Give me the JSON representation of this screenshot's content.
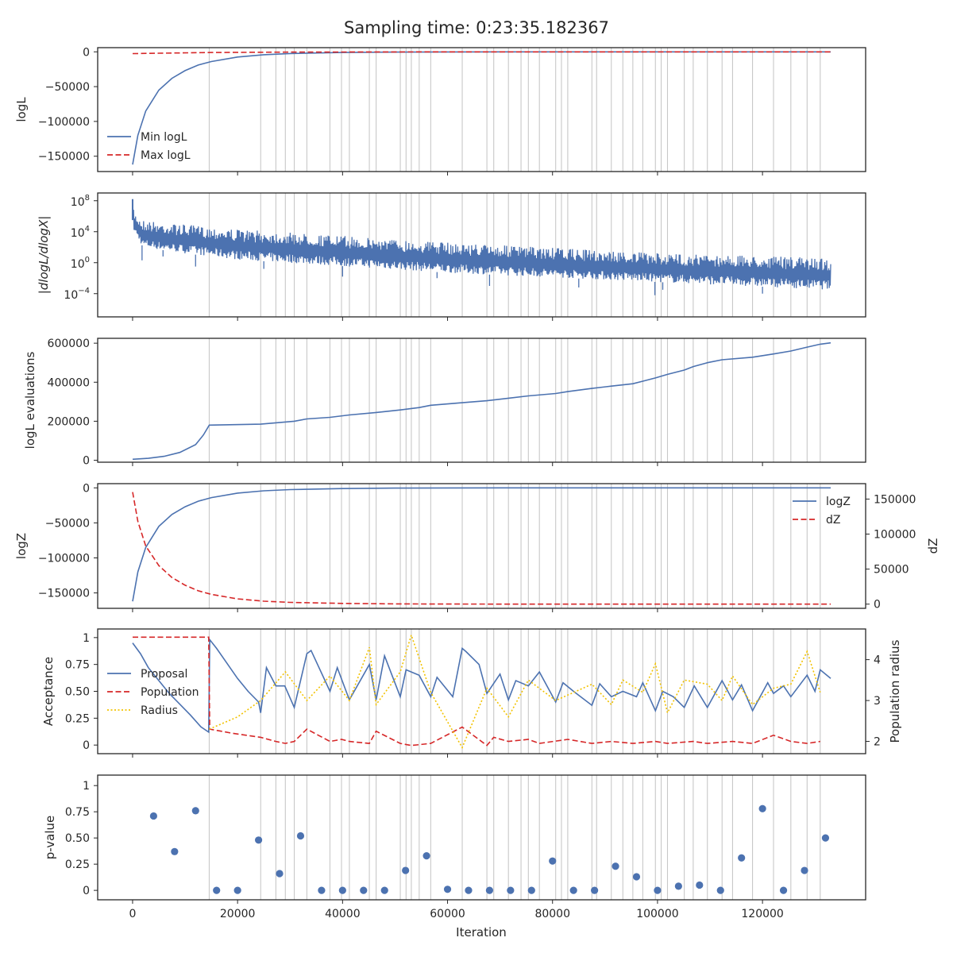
{
  "title": "Sampling time: 0:23:35.182367",
  "colors": {
    "blue": "#4c72b0",
    "red": "#d62728",
    "gold": "#f2c200",
    "vline": "#c8c8c8",
    "axis": "#262626"
  },
  "x_ticks": [
    0,
    20000,
    40000,
    60000,
    80000,
    100000,
    120000
  ],
  "x_label": "Iteration",
  "vlines": [
    14600,
    24400,
    27300,
    29100,
    30800,
    33200,
    37600,
    39800,
    41300,
    45100,
    46400,
    51000,
    52100,
    53100,
    54600,
    56800,
    62800,
    67500,
    68800,
    71600,
    74000,
    75400,
    77500,
    80600,
    81700,
    82900,
    87500,
    88400,
    91200,
    93400,
    95300,
    97200,
    99600,
    100700,
    101900,
    105100,
    106800,
    109500,
    112300,
    114300,
    118100,
    122100,
    125400,
    128500,
    131000
  ],
  "chart_data": [
    {
      "id": "loglike",
      "type": "line",
      "ylabel": "logL",
      "ylim": [
        -172000,
        6000
      ],
      "yticks": [
        0,
        -50000,
        -100000,
        -150000
      ],
      "legend": {
        "location": "lower-left",
        "entries": [
          "Min logL",
          "Max logL"
        ]
      },
      "series": [
        {
          "name": "Min logL",
          "style": "solid",
          "color": "blue",
          "x": [
            0,
            1000,
            2500,
            5000,
            7500,
            10000,
            12500,
            15000,
            20000,
            25000,
            30000,
            40000,
            50000,
            60000,
            80000,
            100000,
            133000
          ],
          "y": [
            -162000,
            -120000,
            -85000,
            -55000,
            -38000,
            -27000,
            -19000,
            -14000,
            -7500,
            -4200,
            -2500,
            -1000,
            -400,
            -150,
            -30,
            -5,
            0
          ]
        },
        {
          "name": "Max logL",
          "style": "dashed",
          "color": "red",
          "x": [
            0,
            5000,
            15000,
            30000,
            60000,
            133000
          ],
          "y": [
            -2600,
            -2000,
            -1000,
            -400,
            -100,
            0
          ]
        }
      ]
    },
    {
      "id": "dlogl",
      "type": "line",
      "ylabel": "|dlogL/dlogX|",
      "yscale": "log",
      "ylim_log10": [
        -7.0,
        9.0
      ],
      "yticks": [
        "10^8",
        "10^4",
        "10^0",
        "10^-4"
      ],
      "yticks_log10": [
        8,
        4,
        0,
        -4
      ],
      "upper_envelope_log10": {
        "x": [
          0,
          300,
          1500,
          5000,
          20000,
          60000,
          100000,
          133000
        ],
        "y": [
          8.2,
          6.5,
          5.6,
          5.2,
          4.3,
          2.6,
          1.2,
          0.6
        ]
      },
      "lower_envelope_log10": {
        "x": [
          0,
          300,
          2000,
          10000,
          20000,
          60000,
          100000,
          133000
        ],
        "y": [
          5.5,
          4.0,
          2.0,
          1.2,
          0.4,
          -1.3,
          -2.5,
          -3.5
        ]
      },
      "spikes_log10": {
        "x": [
          1800,
          5800,
          12000,
          25000,
          40000,
          58000,
          68000,
          85000,
          99500,
          101000,
          120000
        ],
        "y": [
          0.3,
          0.8,
          -0.5,
          -0.8,
          -1.8,
          -2.0,
          -3.0,
          -3.2,
          -4.2,
          -3.5,
          -4.0
        ]
      },
      "series": [
        {
          "name": "",
          "style": "solid",
          "color": "blue"
        }
      ]
    },
    {
      "id": "evals",
      "type": "line",
      "ylabel": "logL evaluations",
      "ylim": [
        -10000,
        625000
      ],
      "yticks": [
        0,
        200000,
        400000,
        600000
      ],
      "series": [
        {
          "name": "",
          "style": "solid",
          "color": "blue",
          "x": [
            0,
            3000,
            6000,
            9000,
            12000,
            13500,
            14600,
            24400,
            30800,
            33200,
            37600,
            41300,
            46400,
            51000,
            54600,
            56800,
            62800,
            67500,
            71600,
            75400,
            80600,
            82900,
            87500,
            91200,
            95300,
            97200,
            99600,
            101900,
            105100,
            106800,
            109500,
            112300,
            118100,
            122100,
            125400,
            128500,
            131000,
            133000
          ],
          "y": [
            5000,
            10000,
            20000,
            40000,
            80000,
            130000,
            180000,
            185000,
            200000,
            212000,
            220000,
            232000,
            245000,
            258000,
            270000,
            282000,
            295000,
            305000,
            318000,
            330000,
            342000,
            352000,
            368000,
            380000,
            392000,
            405000,
            422000,
            440000,
            462000,
            480000,
            500000,
            515000,
            528000,
            545000,
            560000,
            580000,
            595000,
            602000
          ]
        }
      ]
    },
    {
      "id": "logz",
      "type": "line",
      "ylabel": "logZ",
      "ylabel_right": "dZ",
      "ylim": [
        -172000,
        6000
      ],
      "yticks": [
        0,
        -50000,
        -100000,
        -150000
      ],
      "ylim_right": [
        -6000,
        172000
      ],
      "yticks_right": [
        150000,
        100000,
        50000,
        0
      ],
      "legend": {
        "location": "upper-right",
        "entries": [
          "logZ",
          "dZ"
        ]
      },
      "series": [
        {
          "name": "logZ",
          "style": "solid",
          "color": "blue",
          "axis": "left",
          "x": [
            0,
            1000,
            2500,
            5000,
            7500,
            10000,
            12500,
            15000,
            20000,
            25000,
            30000,
            40000,
            50000,
            60000,
            80000,
            100000,
            133000
          ],
          "y": [
            -162000,
            -120000,
            -85000,
            -55000,
            -38000,
            -27000,
            -19000,
            -14000,
            -7500,
            -4200,
            -2500,
            -1000,
            -400,
            -150,
            -30,
            -5,
            0
          ]
        },
        {
          "name": "dZ",
          "style": "dashed",
          "color": "red",
          "axis": "right",
          "x": [
            0,
            1000,
            2500,
            5000,
            7500,
            10000,
            12500,
            15000,
            20000,
            25000,
            30000,
            40000,
            50000,
            60000,
            80000,
            100000,
            133000
          ],
          "y": [
            160000,
            118000,
            83000,
            55000,
            38000,
            27000,
            19000,
            14000,
            7500,
            4200,
            2500,
            1000,
            400,
            150,
            30,
            5,
            0
          ]
        }
      ]
    },
    {
      "id": "accept",
      "type": "line",
      "ylabel": "Acceptance",
      "ylabel_right": "Population radius",
      "ylim": [
        -0.08,
        1.08
      ],
      "yticks": [
        0.0,
        0.25,
        0.5,
        0.75,
        1.0
      ],
      "ylim_right": [
        1.7,
        4.75
      ],
      "yticks_right": [
        2,
        3,
        4
      ],
      "legend": {
        "location": "center-left",
        "entries": [
          "Proposal",
          "Population",
          "Radius"
        ]
      },
      "series": [
        {
          "name": "Proposal",
          "style": "solid",
          "color": "blue",
          "axis": "left",
          "x": [
            0,
            1500,
            3000,
            5000,
            7000,
            9000,
            11000,
            13000,
            14500,
            14700,
            16000,
            18000,
            20000,
            22000,
            24000,
            24400,
            25500,
            27300,
            29000,
            30800,
            33200,
            34000,
            37600,
            39000,
            41300,
            45100,
            46400,
            48000,
            51000,
            52100,
            54600,
            56800,
            58000,
            61000,
            62800,
            63500,
            66000,
            67500,
            70000,
            71600,
            73000,
            75400,
            77500,
            80600,
            82000,
            84000,
            87500,
            89000,
            91200,
            93400,
            96000,
            97200,
            99600,
            101000,
            103000,
            105100,
            107000,
            109500,
            112300,
            114300,
            116000,
            118100,
            121000,
            122100,
            124000,
            125400,
            128500,
            130000,
            131000,
            133000
          ],
          "y": [
            0.95,
            0.85,
            0.72,
            0.6,
            0.48,
            0.38,
            0.28,
            0.17,
            0.12,
            0.98,
            0.9,
            0.76,
            0.62,
            0.5,
            0.4,
            0.3,
            0.72,
            0.55,
            0.55,
            0.35,
            0.85,
            0.88,
            0.5,
            0.72,
            0.42,
            0.75,
            0.42,
            0.83,
            0.45,
            0.7,
            0.65,
            0.45,
            0.63,
            0.45,
            0.9,
            0.87,
            0.75,
            0.48,
            0.66,
            0.42,
            0.6,
            0.55,
            0.68,
            0.4,
            0.58,
            0.5,
            0.37,
            0.57,
            0.45,
            0.5,
            0.45,
            0.58,
            0.32,
            0.5,
            0.45,
            0.35,
            0.55,
            0.35,
            0.6,
            0.42,
            0.56,
            0.32,
            0.58,
            0.48,
            0.55,
            0.45,
            0.65,
            0.5,
            0.7,
            0.62
          ]
        },
        {
          "name": "Population",
          "style": "dashed",
          "color": "red",
          "axis": "right",
          "x": [
            0,
            14500,
            14700,
            19000,
            24400,
            27300,
            29100,
            30800,
            33200,
            37600,
            39800,
            41300,
            45100,
            46400,
            51000,
            53100,
            56800,
            62800,
            67500,
            68800,
            71600,
            75400,
            77500,
            82900,
            87500,
            91200,
            95300,
            99600,
            101900,
            106800,
            109500,
            114300,
            118100,
            122100,
            125400,
            128500,
            131000
          ],
          "y": [
            4.55,
            4.55,
            2.3,
            2.2,
            2.1,
            2.0,
            1.95,
            2.0,
            2.3,
            2.0,
            2.05,
            2.0,
            1.95,
            2.25,
            1.95,
            1.9,
            1.95,
            2.35,
            1.9,
            2.1,
            2.0,
            2.05,
            1.95,
            2.05,
            1.95,
            2.0,
            1.95,
            2.0,
            1.95,
            2.0,
            1.95,
            2.0,
            1.95,
            2.15,
            2.0,
            1.95,
            2.0
          ]
        },
        {
          "name": "Radius",
          "style": "dotted",
          "color": "gold",
          "axis": "right",
          "x": [
            14600,
            20000,
            24400,
            29100,
            33200,
            37600,
            41300,
            45100,
            46400,
            51000,
            53100,
            56800,
            62800,
            67500,
            71600,
            75400,
            80600,
            87500,
            91200,
            93400,
            97200,
            99600,
            101900,
            105100,
            109500,
            112300,
            114300,
            118100,
            122100,
            125400,
            128500,
            131000
          ],
          "y": [
            2.3,
            2.6,
            3.0,
            3.7,
            3.0,
            3.6,
            3.0,
            4.3,
            2.9,
            3.7,
            4.6,
            3.2,
            1.85,
            3.3,
            2.6,
            3.5,
            3.0,
            3.4,
            2.9,
            3.5,
            3.2,
            3.9,
            2.7,
            3.5,
            3.4,
            3.0,
            3.6,
            2.9,
            3.3,
            3.4,
            4.2,
            3.2
          ]
        }
      ]
    },
    {
      "id": "pvalue",
      "type": "scatter",
      "ylabel": "p-value",
      "ylim": [
        -0.09,
        1.1
      ],
      "yticks": [
        0.0,
        0.25,
        0.5,
        0.75,
        1.0
      ],
      "show_vlines": true,
      "series": [
        {
          "name": "",
          "color": "blue",
          "x": [
            4000,
            8000,
            12000,
            16000,
            20000,
            24000,
            28000,
            32000,
            36000,
            40000,
            44000,
            48000,
            52000,
            56000,
            60000,
            64000,
            68000,
            72000,
            76000,
            80000,
            84000,
            88000,
            92000,
            96000,
            100000,
            104000,
            108000,
            112000,
            116000,
            120000,
            124000,
            128000,
            132000
          ],
          "y": [
            0.71,
            0.37,
            0.76,
            0.0,
            0.0,
            0.48,
            0.16,
            0.52,
            0.0,
            0.0,
            0.0,
            0.0,
            0.19,
            0.33,
            0.01,
            0.0,
            0.0,
            0.0,
            0.0,
            0.28,
            0.0,
            0.0,
            0.23,
            0.13,
            0.0,
            0.04,
            0.05,
            0.0,
            0.31,
            0.78,
            0.0,
            0.19,
            0.5
          ]
        }
      ]
    }
  ]
}
